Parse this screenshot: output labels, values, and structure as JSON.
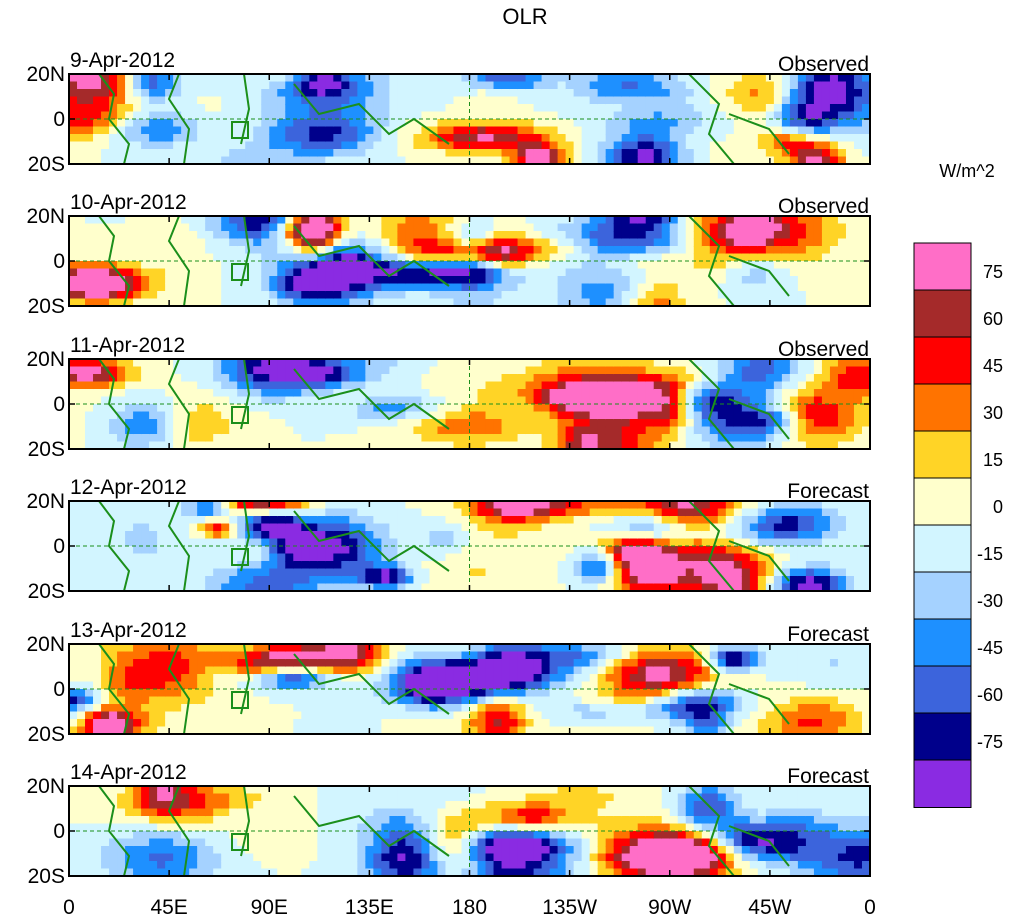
{
  "chart_data": {
    "type": "heatmap",
    "title": "OLR",
    "units_label": "W/m^2",
    "y_ticks": [
      "20N",
      "0",
      "20S"
    ],
    "x_ticks": [
      "0",
      "45E",
      "90E",
      "135E",
      "180",
      "135W",
      "90W",
      "45W",
      "0"
    ],
    "colorbar": {
      "levels": [
        75,
        60,
        45,
        30,
        15,
        0,
        -15,
        -30,
        -45,
        -60,
        -75
      ],
      "colors": [
        "#ff6ec7",
        "#a52a2a",
        "#ff0000",
        "#ff7300",
        "#ffd426",
        "#ffffcc",
        "#d2f5ff",
        "#a5d2ff",
        "#1e90ff",
        "#3c64dc",
        "#00008b",
        "#8a2be2"
      ]
    },
    "panels": [
      {
        "date": "9-Apr-2012",
        "kind": "Observed"
      },
      {
        "date": "10-Apr-2012",
        "kind": "Observed"
      },
      {
        "date": "11-Apr-2012",
        "kind": "Observed"
      },
      {
        "date": "12-Apr-2012",
        "kind": "Forecast"
      },
      {
        "date": "13-Apr-2012",
        "kind": "Forecast"
      },
      {
        "date": "14-Apr-2012",
        "kind": "Forecast"
      }
    ]
  }
}
